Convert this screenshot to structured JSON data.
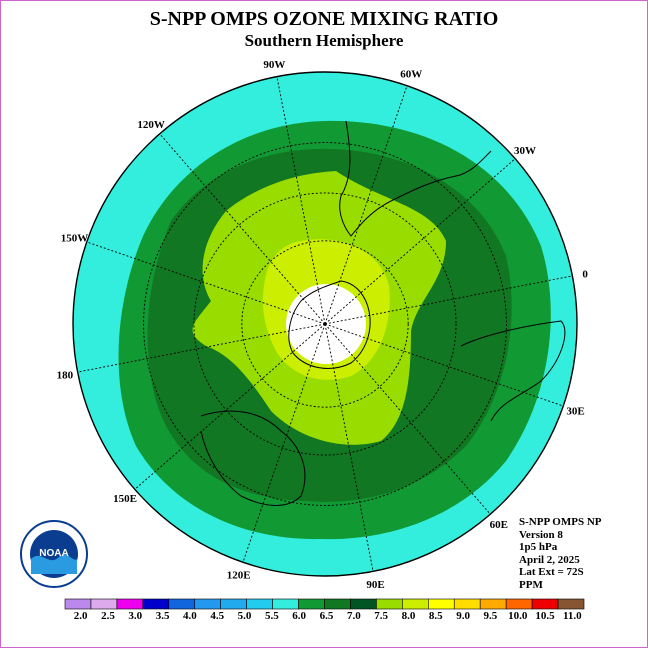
{
  "header": {
    "title": "S-NPP OMPS OZONE MIXING RATIO",
    "subtitle": "Southern Hemisphere"
  },
  "info": {
    "lines": [
      "S-NPP OMPS NP",
      "Version 8",
      "1p5 hPa",
      "April 2, 2025",
      "Lat Ext = 72S",
      "PPM"
    ]
  },
  "logo": {
    "text": "NOAA"
  },
  "chart_data": {
    "type": "heatmap",
    "projection": "south-polar-stereographic",
    "pressure_level": "1p5 hPa",
    "units": "PPM",
    "longitude_labels": [
      "90W",
      "60W",
      "30W",
      "0",
      "30E",
      "60E",
      "90E",
      "120E",
      "150E",
      "180",
      "150W",
      "120W"
    ],
    "colorbar": {
      "ticks": [
        "2.0",
        "2.5",
        "3.0",
        "3.5",
        "4.0",
        "4.5",
        "5.0",
        "5.5",
        "6.0",
        "6.5",
        "7.0",
        "7.5",
        "8.0",
        "8.5",
        "9.0",
        "9.5",
        "10.0",
        "10.5",
        "11.0"
      ],
      "colors": [
        "#bb88ee",
        "#ddaaee",
        "#ee00ee",
        "#0000cc",
        "#1166dd",
        "#2299ee",
        "#22aaee",
        "#22ccee",
        "#33eedd",
        "#119933",
        "#117722",
        "#005522",
        "#99dd00",
        "#ccee00",
        "#ffff00",
        "#ffdd00",
        "#ffaa00",
        "#ff6600",
        "#ee0000",
        "#885533"
      ]
    },
    "contour_fills": [
      {
        "band": "5.5-6.0",
        "color": "#33eedd"
      },
      {
        "band": "6.0-6.5",
        "color": "#119933"
      },
      {
        "band": "6.5-7.0",
        "color": "#117722"
      },
      {
        "band": "7.5-8.0",
        "color": "#99dd00"
      },
      {
        "band": "8.0-8.5",
        "color": "#ccee00"
      },
      {
        "band": "no data",
        "color": "#ffffff"
      }
    ]
  }
}
